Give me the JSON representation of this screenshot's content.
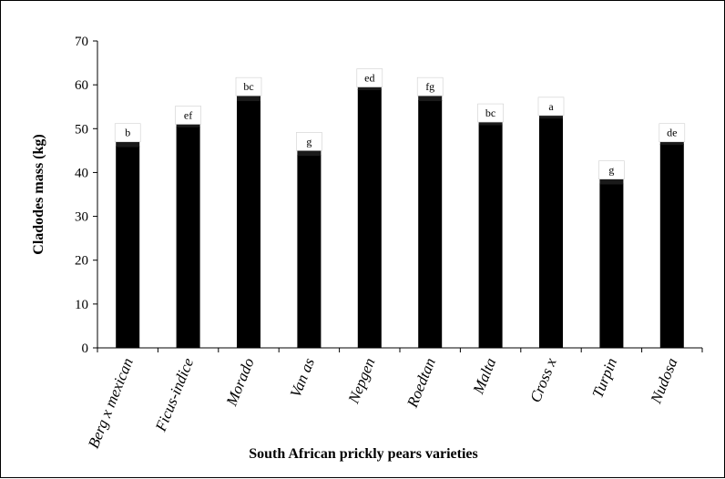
{
  "chart_data": {
    "type": "bar",
    "title": "",
    "xlabel": "South African prickly pears varieties",
    "ylabel": "Cladodes mass (kg)",
    "ylim": [
      0,
      70
    ],
    "yticks": [
      0,
      10,
      20,
      30,
      40,
      50,
      60,
      70
    ],
    "grid": false,
    "legend": "none",
    "bar_color": "#000000",
    "categories": [
      "Berg x mexican",
      "Ficus-indice",
      "Morado",
      "Van as",
      "Nepgen",
      "Roedtan",
      "Malta",
      "Cross x",
      "Turpin",
      "Nudosa"
    ],
    "values": [
      46,
      50.5,
      56.5,
      44,
      59,
      56.5,
      51,
      52.5,
      37.5,
      46.5
    ],
    "error_top": [
      47,
      51,
      57.5,
      45,
      59.5,
      57.5,
      51.5,
      53,
      38.5,
      47
    ],
    "significance_letters": [
      "b",
      "ef",
      "bc",
      "g",
      "ed",
      "fg",
      "bc",
      "a",
      "g",
      "de"
    ]
  }
}
